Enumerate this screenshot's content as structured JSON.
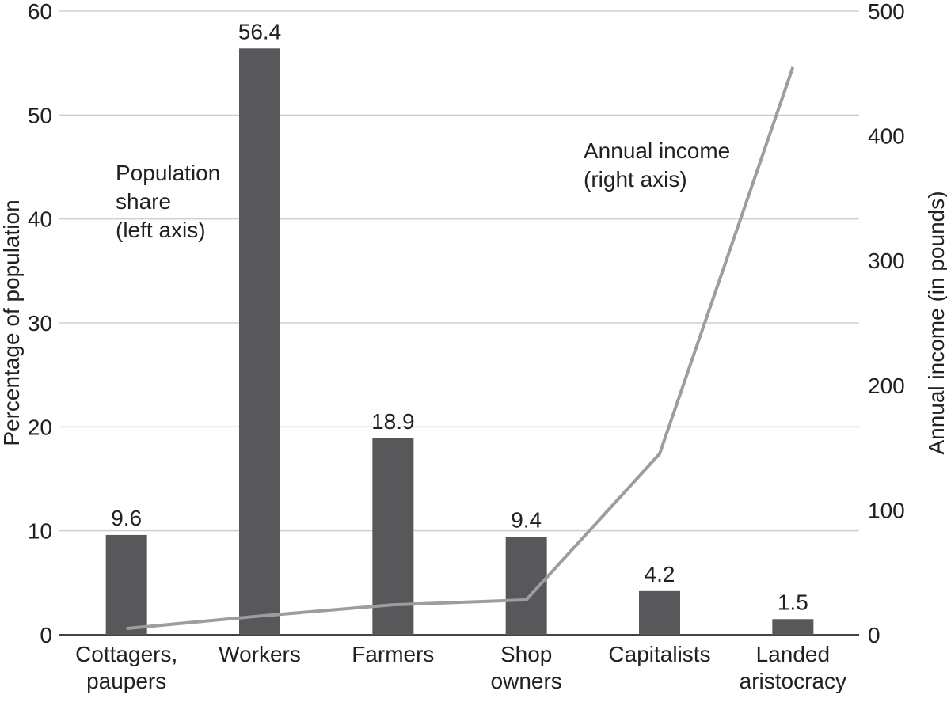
{
  "chart_data": {
    "type": "bar+line",
    "categories": [
      [
        "Cottagers,",
        "paupers"
      ],
      [
        "Workers"
      ],
      [
        "Farmers"
      ],
      [
        "Shop",
        "owners"
      ],
      [
        "Capitalists"
      ],
      [
        "Landed",
        "aristocracy"
      ]
    ],
    "series": [
      {
        "name": "Population share (left axis)",
        "name_lines": [
          "Population",
          "share",
          "(left axis)"
        ],
        "type": "bar",
        "axis": "left",
        "values": [
          9.6,
          56.4,
          18.9,
          9.4,
          4.2,
          1.5
        ],
        "color": "#58585a"
      },
      {
        "name": "Annual income (right axis)",
        "name_lines": [
          "Annual income",
          "(right axis)"
        ],
        "type": "line",
        "axis": "right",
        "values": [
          5,
          15,
          24,
          28,
          145,
          455
        ],
        "color": "#9d9d9f"
      }
    ],
    "data_labels": [
      "9.6",
      "56.4",
      "18.9",
      "9.4",
      "4.2",
      "1.5"
    ],
    "ylabel": "Percentage of population",
    "y2label": "Annual income (in pounds)",
    "ylim": [
      0,
      60
    ],
    "y2lim": [
      0,
      500
    ],
    "yticks": [
      "0",
      "10",
      "20",
      "30",
      "40",
      "50",
      "60"
    ],
    "y2ticks": [
      "0",
      "100",
      "200",
      "300",
      "400",
      "500"
    ],
    "grid": true,
    "legend": "inline labels"
  }
}
